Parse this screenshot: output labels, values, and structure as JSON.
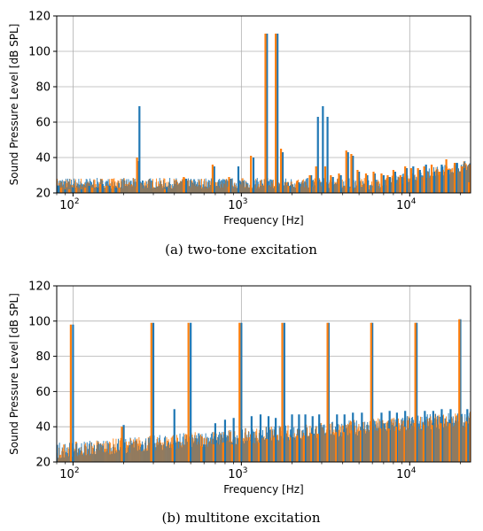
{
  "colors": {
    "series1": "#1f77b4",
    "series2": "#ff7f0e",
    "grid": "#b0b0b0"
  },
  "chart_data": [
    {
      "type": "bar",
      "caption": "(a) two-tone excitation",
      "xlabel": "Frequency [Hz]",
      "ylabel": "Sound Pressure Level [dB SPL]",
      "xscale": "log",
      "xlim": [
        80,
        23000
      ],
      "ylim": [
        20,
        120
      ],
      "yticks": [
        20,
        40,
        60,
        80,
        100,
        120
      ],
      "xticks": [
        {
          "value": 100,
          "base": "10",
          "exp": "2"
        },
        {
          "value": 1000,
          "base": "10",
          "exp": "3"
        },
        {
          "value": 10000,
          "base": "10",
          "exp": "4"
        }
      ],
      "grid": true,
      "series": [
        {
          "values": [
            [
              82,
              24
            ],
            [
              90,
              22
            ],
            [
              100,
              23
            ],
            [
              112,
              22
            ],
            [
              125,
              24
            ],
            [
              140,
              23
            ],
            [
              150,
              25
            ],
            [
              165,
              24
            ],
            [
              180,
              23
            ],
            [
              248,
              69
            ],
            [
              245,
              38
            ],
            [
              360,
              23
            ],
            [
              470,
              28
            ],
            [
              690,
              35
            ],
            [
              860,
              28
            ],
            [
              960,
              35
            ],
            [
              1180,
              40
            ],
            [
              1420,
              110
            ],
            [
              1640,
              110
            ],
            [
              1760,
              43
            ],
            [
              1950,
              24
            ],
            [
              2200,
              26
            ],
            [
              2600,
              30
            ],
            [
              2850,
              63
            ],
            [
              3050,
              69
            ],
            [
              3250,
              63
            ],
            [
              3500,
              29
            ],
            [
              3900,
              30
            ],
            [
              4300,
              43
            ],
            [
              4600,
              41
            ],
            [
              5000,
              32
            ],
            [
              5600,
              30
            ],
            [
              6200,
              31
            ],
            [
              7000,
              30
            ],
            [
              7600,
              29
            ],
            [
              8200,
              32
            ],
            [
              9000,
              29
            ],
            [
              9600,
              34
            ],
            [
              10500,
              35
            ],
            [
              11500,
              33
            ],
            [
              12500,
              36
            ],
            [
              14000,
              32
            ],
            [
              15500,
              36
            ],
            [
              17000,
              33
            ],
            [
              19000,
              37
            ],
            [
              21000,
              34
            ]
          ]
        },
        {
          "values": [
            [
              85,
              23
            ],
            [
              95,
              22
            ],
            [
              105,
              23
            ],
            [
              118,
              23
            ],
            [
              130,
              23
            ],
            [
              145,
              25
            ],
            [
              158,
              24
            ],
            [
              172,
              24
            ],
            [
              188,
              23
            ],
            [
              240,
              40
            ],
            [
              350,
              22
            ],
            [
              455,
              29
            ],
            [
              675,
              36
            ],
            [
              845,
              29
            ],
            [
              1140,
              41
            ],
            [
              1390,
              110
            ],
            [
              1600,
              110
            ],
            [
              1720,
              45
            ],
            [
              1900,
              24
            ],
            [
              2150,
              27
            ],
            [
              2550,
              30
            ],
            [
              2780,
              35
            ],
            [
              3150,
              35
            ],
            [
              3400,
              30
            ],
            [
              3800,
              31
            ],
            [
              4200,
              44
            ],
            [
              4500,
              42
            ],
            [
              4900,
              33
            ],
            [
              5500,
              31
            ],
            [
              6100,
              32
            ],
            [
              6800,
              31
            ],
            [
              7400,
              30
            ],
            [
              8000,
              33
            ],
            [
              8800,
              30
            ],
            [
              9400,
              35
            ],
            [
              10200,
              34
            ],
            [
              11200,
              34
            ],
            [
              12200,
              35
            ],
            [
              13500,
              36
            ],
            [
              15000,
              32
            ],
            [
              16500,
              39
            ],
            [
              18500,
              37
            ],
            [
              20500,
              35
            ],
            [
              22500,
              26
            ]
          ]
        }
      ]
    },
    {
      "type": "bar",
      "caption": "(b) multitone excitation",
      "xlabel": "Frequency [Hz]",
      "ylabel": "Sound Pressure Level [dB SPL]",
      "xscale": "log",
      "xlim": [
        80,
        23000
      ],
      "ylim": [
        20,
        120
      ],
      "yticks": [
        20,
        40,
        60,
        80,
        100,
        120
      ],
      "xticks": [
        {
          "value": 100,
          "base": "10",
          "exp": "2"
        },
        {
          "value": 1000,
          "base": "10",
          "exp": "3"
        },
        {
          "value": 10000,
          "base": "10",
          "exp": "4"
        }
      ],
      "grid": true,
      "series": [
        {
          "values": [
            [
              100,
              98
            ],
            [
              200,
              41
            ],
            [
              300,
              99
            ],
            [
              400,
              50
            ],
            [
              500,
              99
            ],
            [
              600,
              30
            ],
            [
              700,
              42
            ],
            [
              800,
              44
            ],
            [
              900,
              45
            ],
            [
              1000,
              99
            ],
            [
              1150,
              46
            ],
            [
              1300,
              47
            ],
            [
              1450,
              46
            ],
            [
              1600,
              45
            ],
            [
              1800,
              99
            ],
            [
              2000,
              47
            ],
            [
              2200,
              47
            ],
            [
              2400,
              47
            ],
            [
              2650,
              46
            ],
            [
              2900,
              47
            ],
            [
              3300,
              99
            ],
            [
              3700,
              47
            ],
            [
              4100,
              47
            ],
            [
              4600,
              48
            ],
            [
              5200,
              48
            ],
            [
              6000,
              99
            ],
            [
              6800,
              48
            ],
            [
              7600,
              49
            ],
            [
              8400,
              48
            ],
            [
              9400,
              49
            ],
            [
              11000,
              99
            ],
            [
              12300,
              49
            ],
            [
              13800,
              49
            ],
            [
              15500,
              50
            ],
            [
              17500,
              50
            ],
            [
              20000,
              101
            ],
            [
              22000,
              50
            ]
          ]
        },
        {
          "values": [
            [
              97,
              98
            ],
            [
              195,
              40
            ],
            [
              292,
              99
            ],
            [
              390,
              30
            ],
            [
              485,
              99
            ],
            [
              580,
              29
            ],
            [
              680,
              30
            ],
            [
              780,
              31
            ],
            [
              880,
              30
            ],
            [
              975,
              99
            ],
            [
              1120,
              32
            ],
            [
              1270,
              31
            ],
            [
              1420,
              33
            ],
            [
              1560,
              34
            ],
            [
              1750,
              99
            ],
            [
              1950,
              34
            ],
            [
              2150,
              35
            ],
            [
              2350,
              35
            ],
            [
              2600,
              36
            ],
            [
              2850,
              36
            ],
            [
              3250,
              99
            ],
            [
              3650,
              37
            ],
            [
              4050,
              37
            ],
            [
              4500,
              38
            ],
            [
              5100,
              38
            ],
            [
              5900,
              99
            ],
            [
              6700,
              39
            ],
            [
              7500,
              39
            ],
            [
              8300,
              40
            ],
            [
              9300,
              40
            ],
            [
              10800,
              99
            ],
            [
              12100,
              41
            ],
            [
              13600,
              41
            ],
            [
              15300,
              42
            ],
            [
              17300,
              42
            ],
            [
              19700,
              101
            ],
            [
              21700,
              43
            ]
          ]
        }
      ]
    }
  ]
}
